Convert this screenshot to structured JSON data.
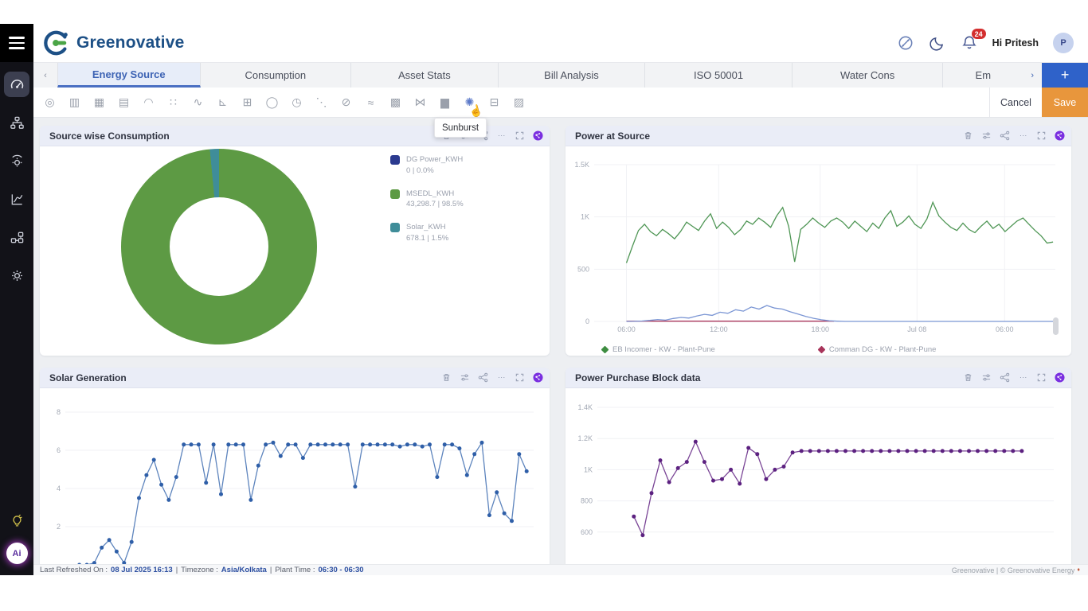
{
  "header": {
    "brand": "Greenovative",
    "greeting": "Hi Pritesh",
    "avatar_initial": "P",
    "notification_count": "24"
  },
  "sidebar": {
    "items": [
      {
        "name": "dashboard",
        "active": true
      },
      {
        "name": "hierarchy",
        "active": false
      },
      {
        "name": "energy-meter",
        "active": false
      },
      {
        "name": "analytics",
        "active": false
      },
      {
        "name": "workflow",
        "active": false
      },
      {
        "name": "settings",
        "active": false
      }
    ],
    "ai_label": "Ai"
  },
  "tabs": {
    "items": [
      {
        "label": "Energy Source",
        "active": true
      },
      {
        "label": "Consumption",
        "active": false
      },
      {
        "label": "Asset Stats",
        "active": false
      },
      {
        "label": "Bill Analysis",
        "active": false
      },
      {
        "label": "ISO 50001",
        "active": false
      },
      {
        "label": "Water Cons",
        "active": false
      },
      {
        "label": "Em",
        "active": false
      }
    ],
    "add_label": "+"
  },
  "toolbar": {
    "icons": [
      {
        "name": "gauge-chart",
        "glyph": "◎"
      },
      {
        "name": "bar-chart",
        "glyph": "▥"
      },
      {
        "name": "stacked-bar-chart",
        "glyph": "▦"
      },
      {
        "name": "grouped-bar-chart",
        "glyph": "▤"
      },
      {
        "name": "speedometer-chart",
        "glyph": "◠"
      },
      {
        "name": "node-graph-chart",
        "glyph": "∷"
      },
      {
        "name": "line-chart",
        "glyph": "∿"
      },
      {
        "name": "step-line-chart",
        "glyph": "⊾"
      },
      {
        "name": "grid-chart",
        "glyph": "⊞"
      },
      {
        "name": "donut-chart",
        "glyph": "◯"
      },
      {
        "name": "clock-chart",
        "glyph": "◷"
      },
      {
        "name": "scatter-chart",
        "glyph": "⋱"
      },
      {
        "name": "capsule-chart",
        "glyph": "⊘"
      },
      {
        "name": "area-chart",
        "glyph": "≈"
      },
      {
        "name": "heatmap-chart",
        "glyph": "▩"
      },
      {
        "name": "butterfly-chart",
        "glyph": "⋈"
      },
      {
        "name": "histogram-chart",
        "glyph": "▆"
      },
      {
        "name": "sunburst-chart",
        "glyph": "✺",
        "hovered": true
      },
      {
        "name": "table-chart",
        "glyph": "⊟"
      },
      {
        "name": "column-compare-chart",
        "glyph": "▨"
      }
    ],
    "tooltip": "Sunburst",
    "cancel_label": "Cancel",
    "save_label": "Save"
  },
  "panels": [
    {
      "title": "Source wise Consumption"
    },
    {
      "title": "Power at Source"
    },
    {
      "title": "Solar Generation"
    },
    {
      "title": "Power Purchase Block data"
    }
  ],
  "chart_data": [
    {
      "type": "pie",
      "title": "Source wise Consumption",
      "series": [
        {
          "label": "DG Power_KWH",
          "value": 0,
          "display": "0 | 0.0%",
          "pct": 0.0,
          "color": "#2b3a8f"
        },
        {
          "label": "MSEDL_KWH",
          "value": 43298.7,
          "display": "43,298.7 | 98.5%",
          "pct": 98.5,
          "color": "#5d9a44"
        },
        {
          "label": "Solar_KWH",
          "value": 678.1,
          "display": "678.1 | 1.5%",
          "pct": 1.5,
          "color": "#3f8d99"
        }
      ]
    },
    {
      "type": "line",
      "title": "Power at Source",
      "ylim": [
        0,
        1500
      ],
      "yticks": [
        {
          "v": 1500,
          "l": "1.5K"
        },
        {
          "v": 1000,
          "l": "1K"
        },
        {
          "v": 500,
          "l": "500"
        },
        {
          "v": 0,
          "l": "0"
        }
      ],
      "xticks": [
        {
          "f": 0.07,
          "l": "06:00"
        },
        {
          "f": 0.27,
          "l": "12:00"
        },
        {
          "f": 0.49,
          "l": "18:00"
        },
        {
          "f": 0.7,
          "l": "Jul 08"
        },
        {
          "f": 0.89,
          "l": "06:00"
        }
      ],
      "series": [
        {
          "name": "Comman DG - KW - Plant-Pune",
          "color": "#a8345a",
          "xs": 0.07,
          "xe": 0.52,
          "dots": false,
          "values": [
            2,
            2
          ]
        },
        {
          "name": "",
          "color": "#7b96d4",
          "xs": 0.07,
          "xe": 1.0,
          "dots": false,
          "values": [
            0,
            1,
            4,
            10,
            18,
            12,
            28,
            38,
            32,
            52,
            68,
            58,
            88,
            78,
            112,
            98,
            138,
            118,
            152,
            128,
            118,
            92,
            70,
            48,
            30,
            16,
            6,
            2,
            0,
            0,
            0,
            0,
            0,
            0,
            0,
            0,
            0,
            0,
            0,
            0,
            0,
            0,
            0,
            0,
            0,
            0,
            0,
            0,
            0,
            0,
            0,
            0,
            0,
            0,
            0,
            0
          ]
        },
        {
          "name": "EB Incomer - KW - Plant-Pune",
          "color": "#4f9655",
          "xs": 0.07,
          "xe": 0.995,
          "dots": false,
          "values": [
            560,
            720,
            870,
            930,
            860,
            820,
            880,
            840,
            790,
            860,
            950,
            910,
            870,
            960,
            1030,
            890,
            950,
            900,
            830,
            880,
            960,
            930,
            990,
            950,
            900,
            1010,
            1090,
            910,
            570,
            880,
            930,
            990,
            940,
            900,
            960,
            990,
            950,
            890,
            960,
            910,
            860,
            940,
            890,
            990,
            1060,
            910,
            950,
            1010,
            930,
            890,
            980,
            1140,
            1010,
            950,
            900,
            870,
            940,
            880,
            850,
            910,
            960,
            890,
            930,
            860,
            910,
            960,
            990,
            930,
            870,
            820,
            750,
            760
          ]
        }
      ],
      "legend": [
        {
          "label": "EB Incomer - KW - Plant-Pune",
          "color": "#3e8d41"
        },
        {
          "label": "Comman DG - KW - Plant-Pune",
          "color": "#a8345a"
        }
      ]
    },
    {
      "type": "line",
      "title": "Solar Generation",
      "ylim": [
        0,
        8
      ],
      "yticks": [
        {
          "v": 8,
          "l": "8"
        },
        {
          "v": 6,
          "l": "6"
        },
        {
          "v": 4,
          "l": "4"
        },
        {
          "v": 2,
          "l": "2"
        }
      ],
      "line_color": "#5d84bd",
      "dot_color": "#2f5fa8",
      "xs": 0.03,
      "xe": 0.985,
      "values": [
        0,
        0,
        0.1,
        0.9,
        1.3,
        0.7,
        0.1,
        1.2,
        3.5,
        4.7,
        5.5,
        4.2,
        3.4,
        4.6,
        6.3,
        6.3,
        6.3,
        4.3,
        6.3,
        3.7,
        6.3,
        6.3,
        6.3,
        3.4,
        5.2,
        6.3,
        6.4,
        5.7,
        6.3,
        6.3,
        5.6,
        6.3,
        6.3,
        6.3,
        6.3,
        6.3,
        6.3,
        4.1,
        6.3,
        6.3,
        6.3,
        6.3,
        6.3,
        6.2,
        6.3,
        6.3,
        6.2,
        6.3,
        4.6,
        6.3,
        6.3,
        6.1,
        4.7,
        5.8,
        6.4,
        2.6,
        3.8,
        2.7,
        2.3,
        5.8,
        4.9
      ]
    },
    {
      "type": "line",
      "title": "Power Purchase Block data",
      "ylim": [
        400,
        1400
      ],
      "yticks": [
        {
          "v": 1400,
          "l": "1.4K"
        },
        {
          "v": 1200,
          "l": "1.2K"
        },
        {
          "v": 1000,
          "l": "1K"
        },
        {
          "v": 800,
          "l": "800"
        },
        {
          "v": 600,
          "l": "600"
        }
      ],
      "line_color": "#7a4596",
      "dot_color": "#5c2180",
      "xs": 0.08,
      "xe": 0.93,
      "values": [
        700,
        580,
        850,
        1060,
        920,
        1010,
        1050,
        1180,
        1050,
        930,
        940,
        1000,
        910,
        1140,
        1100,
        940,
        1000,
        1020,
        1110,
        1120,
        1120,
        1120,
        1120,
        1120,
        1120,
        1120,
        1120,
        1120,
        1120,
        1120,
        1120,
        1120,
        1120,
        1120,
        1120,
        1120,
        1120,
        1120,
        1120,
        1120,
        1120,
        1120,
        1120,
        1120,
        1120
      ]
    }
  ],
  "footer": {
    "refresh_label": "Last Refreshed On :",
    "refresh_value": "08 Jul 2025 16:13",
    "tz_label": "Timezone :",
    "tz_value": "Asia/Kolkata",
    "pt_label": "Plant Time :",
    "pt_value": "06:30 - 06:30",
    "sep": "|",
    "copyright": "Greenovative | © Greenovative Energy"
  }
}
